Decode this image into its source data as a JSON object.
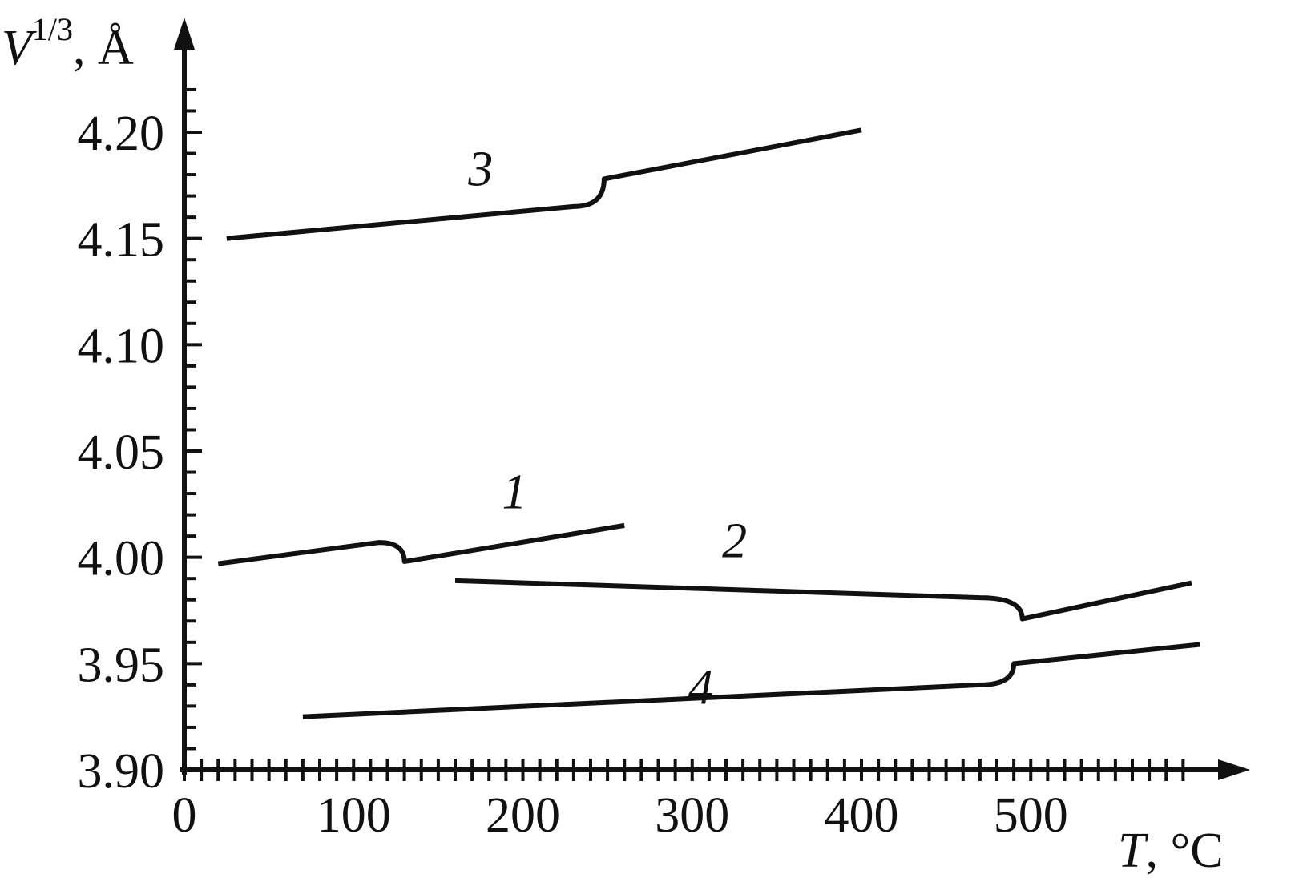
{
  "chart_data": {
    "type": "line",
    "title": "",
    "xlabel": {
      "symbol": "T",
      "unit": ", °C"
    },
    "ylabel": {
      "symbol": "V",
      "superscript": "1/3",
      "unit": ", Å"
    },
    "xlim": [
      0,
      600
    ],
    "ylim": [
      3.9,
      4.22
    ],
    "x_ticks": [
      0,
      100,
      200,
      300,
      400,
      500
    ],
    "x_tick_labels": [
      "0",
      "100",
      "200",
      "300",
      "400",
      "500"
    ],
    "y_ticks": [
      3.9,
      3.95,
      4.0,
      4.05,
      4.1,
      4.15,
      4.2
    ],
    "y_tick_labels": [
      "3.90",
      "3.95",
      "4.00",
      "4.05",
      "4.10",
      "4.15",
      "4.20"
    ],
    "x_minor_step": 10,
    "y_minor_step": 0.01,
    "grid": false,
    "series": [
      {
        "name": "1",
        "x": [
          20,
          115,
          125,
          130,
          260
        ],
        "y": [
          3.997,
          4.007,
          4.005,
          3.998,
          4.015
        ],
        "label_at": [
          195,
          4.023
        ]
      },
      {
        "name": "2",
        "x": [
          160,
          470,
          490,
          495,
          595
        ],
        "y": [
          3.989,
          3.981,
          3.977,
          3.971,
          3.988
        ],
        "label_at": [
          325,
          4.0
        ]
      },
      {
        "name": "3",
        "x": [
          25,
          230,
          245,
          248,
          400
        ],
        "y": [
          4.15,
          4.165,
          4.17,
          4.178,
          4.201
        ],
        "label_at": [
          175,
          4.175
        ]
      },
      {
        "name": "4",
        "x": [
          70,
          470,
          485,
          490,
          600
        ],
        "y": [
          3.925,
          3.94,
          3.944,
          3.95,
          3.959
        ],
        "label_at": [
          305,
          3.931
        ]
      }
    ]
  }
}
